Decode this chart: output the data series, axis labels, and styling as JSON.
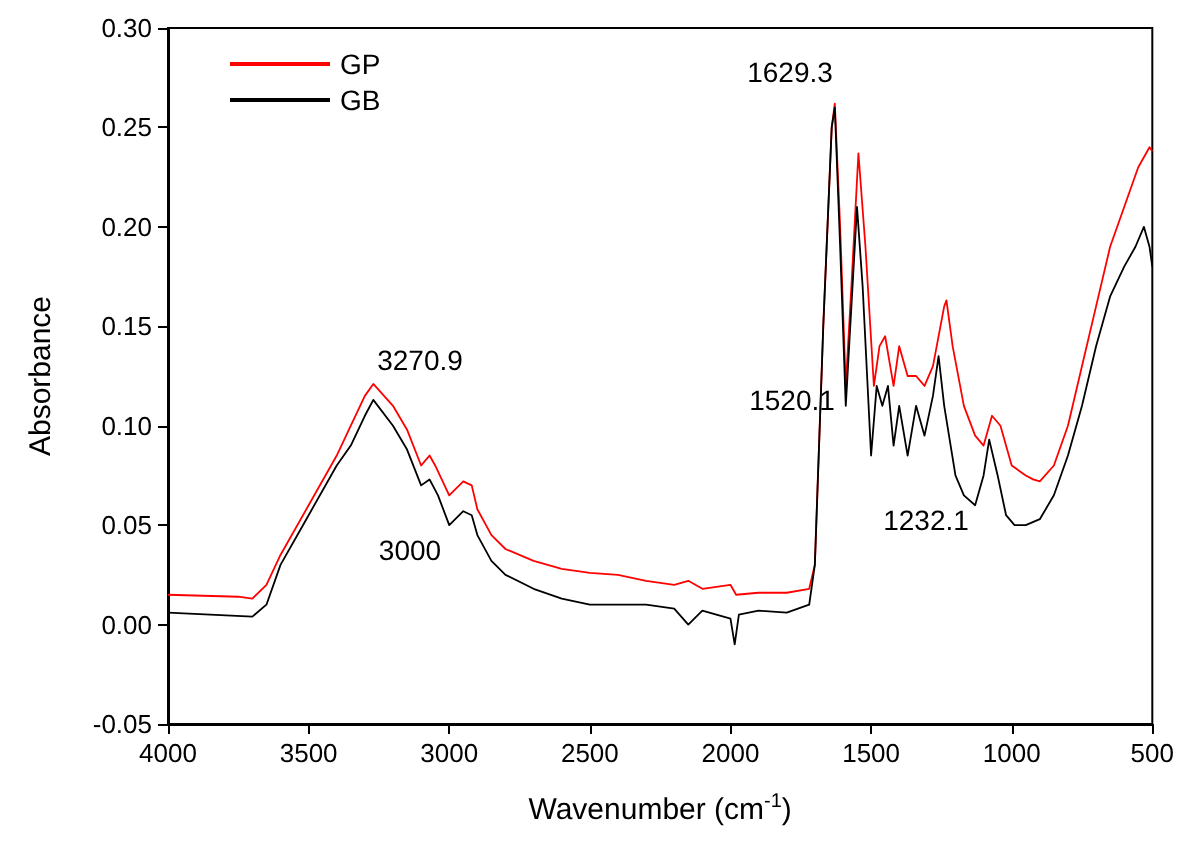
{
  "chart_data": {
    "type": "line",
    "xlabel": "Wavenumber (cm$^{-1}$)",
    "ylabel": "Absorbance",
    "xlim": [
      4000,
      500
    ],
    "xticks": [
      4000,
      3500,
      3000,
      2500,
      2000,
      1500,
      1000,
      500
    ],
    "ylim": [
      -0.05,
      0.3
    ],
    "yticks": [
      {
        "value": -0.05,
        "label": "-0.05"
      },
      {
        "value": 0,
        "label": "0.00"
      },
      {
        "value": 0.05,
        "label": "0.05"
      },
      {
        "value": 0.1,
        "label": "0.10"
      },
      {
        "value": 0.15,
        "label": "0.15"
      },
      {
        "value": 0.2,
        "label": "0.20"
      },
      {
        "value": 0.25,
        "label": "0.25"
      },
      {
        "value": 0.3,
        "label": "0.30"
      }
    ],
    "grid": false,
    "legend": "top left",
    "marker": "none",
    "line_style": "solid",
    "series": [
      {
        "name": "GP",
        "color": "#ff0000",
        "x": [
          4000,
          3750,
          3700,
          3650,
          3600,
          3500,
          3400,
          3350,
          3300,
          3270,
          3200,
          3150,
          3100,
          3070,
          3050,
          3000,
          2950,
          2920,
          2900,
          2850,
          2800,
          2700,
          2600,
          2500,
          2400,
          2300,
          2200,
          2150,
          2100,
          2000,
          1980,
          1900,
          1800,
          1720,
          1700,
          1670,
          1640,
          1629,
          1610,
          1590,
          1570,
          1545,
          1520,
          1490,
          1470,
          1450,
          1420,
          1400,
          1370,
          1340,
          1310,
          1280,
          1240,
          1232,
          1210,
          1170,
          1130,
          1100,
          1070,
          1040,
          1000,
          950,
          924,
          900,
          850,
          800,
          750,
          700,
          650,
          600,
          550,
          510,
          500
        ],
        "values": [
          0.015,
          0.014,
          0.013,
          0.02,
          0.035,
          0.06,
          0.085,
          0.1,
          0.115,
          0.121,
          0.11,
          0.098,
          0.08,
          0.085,
          0.08,
          0.065,
          0.072,
          0.07,
          0.058,
          0.045,
          0.038,
          0.032,
          0.028,
          0.026,
          0.025,
          0.022,
          0.02,
          0.022,
          0.018,
          0.02,
          0.015,
          0.016,
          0.016,
          0.018,
          0.03,
          0.15,
          0.25,
          0.262,
          0.2,
          0.12,
          0.17,
          0.237,
          0.19,
          0.12,
          0.14,
          0.145,
          0.12,
          0.14,
          0.125,
          0.125,
          0.12,
          0.13,
          0.16,
          0.163,
          0.14,
          0.11,
          0.095,
          0.09,
          0.105,
          0.1,
          0.08,
          0.075,
          0.073,
          0.072,
          0.08,
          0.1,
          0.13,
          0.16,
          0.19,
          0.21,
          0.23,
          0.24,
          0.238
        ]
      },
      {
        "name": "GB",
        "color": "#000000",
        "x": [
          4000,
          3700,
          3650,
          3600,
          3500,
          3400,
          3350,
          3300,
          3270,
          3200,
          3150,
          3100,
          3070,
          3040,
          3000,
          2950,
          2920,
          2900,
          2850,
          2800,
          2700,
          2600,
          2500,
          2400,
          2300,
          2200,
          2150,
          2100,
          2000,
          1985,
          1970,
          1900,
          1800,
          1720,
          1700,
          1670,
          1640,
          1629,
          1610,
          1590,
          1570,
          1550,
          1530,
          1500,
          1480,
          1460,
          1440,
          1420,
          1400,
          1370,
          1340,
          1310,
          1280,
          1260,
          1240,
          1200,
          1170,
          1130,
          1100,
          1080,
          1050,
          1020,
          990,
          950,
          900,
          850,
          800,
          750,
          700,
          650,
          600,
          560,
          530,
          510,
          500
        ],
        "values": [
          0.006,
          0.004,
          0.01,
          0.03,
          0.055,
          0.08,
          0.09,
          0.105,
          0.113,
          0.1,
          0.088,
          0.07,
          0.073,
          0.065,
          0.05,
          0.057,
          0.055,
          0.045,
          0.032,
          0.025,
          0.018,
          0.013,
          0.01,
          0.01,
          0.01,
          0.008,
          0.0,
          0.007,
          0.003,
          -0.01,
          0.005,
          0.007,
          0.006,
          0.01,
          0.03,
          0.15,
          0.25,
          0.26,
          0.19,
          0.11,
          0.16,
          0.21,
          0.17,
          0.085,
          0.12,
          0.11,
          0.12,
          0.09,
          0.11,
          0.085,
          0.11,
          0.095,
          0.115,
          0.135,
          0.11,
          0.075,
          0.065,
          0.06,
          0.075,
          0.093,
          0.075,
          0.055,
          0.05,
          0.05,
          0.053,
          0.065,
          0.085,
          0.11,
          0.14,
          0.165,
          0.18,
          0.19,
          0.2,
          0.19,
          0.18
        ]
      }
    ],
    "annotations": [
      "3270.9",
      "3000",
      "1629.3",
      "1520.1",
      "1232.1"
    ]
  }
}
